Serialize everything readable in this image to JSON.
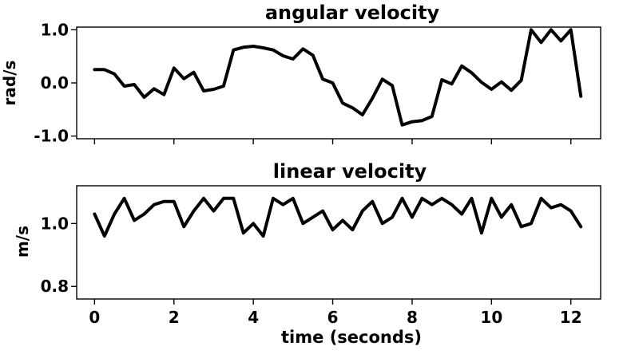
{
  "chart_data": [
    {
      "type": "line",
      "title": "angular velocity",
      "xlabel": "",
      "ylabel": "rad/s",
      "xlim": [
        -0.45,
        12.75
      ],
      "ylim": [
        -1.05,
        1.05
      ],
      "yticks": [
        -1.0,
        0.0,
        1.0
      ],
      "ytick_labels": [
        "-1.0",
        "0.0",
        "1.0"
      ],
      "xticks": [
        0,
        2,
        4,
        6,
        8,
        10,
        12
      ],
      "xtick_labels": [],
      "grid": false,
      "series": [
        {
          "x": [
            0.0,
            0.25,
            0.5,
            0.75,
            1.0,
            1.25,
            1.5,
            1.75,
            2.0,
            2.25,
            2.5,
            2.75,
            3.0,
            3.25,
            3.5,
            3.75,
            4.0,
            4.25,
            4.5,
            4.75,
            5.0,
            5.25,
            5.5,
            5.75,
            6.0,
            6.25,
            6.5,
            6.75,
            7.0,
            7.25,
            7.5,
            7.75,
            8.0,
            8.25,
            8.5,
            8.75,
            9.0,
            9.25,
            9.5,
            9.75,
            10.0,
            10.25,
            10.5,
            10.75,
            11.0,
            11.25,
            11.5,
            11.75,
            12.0,
            12.25
          ],
          "values": [
            0.25,
            0.25,
            0.17,
            -0.06,
            -0.03,
            -0.27,
            -0.11,
            -0.22,
            0.28,
            0.08,
            0.2,
            -0.15,
            -0.12,
            -0.06,
            0.62,
            0.67,
            0.69,
            0.66,
            0.62,
            0.51,
            0.45,
            0.64,
            0.52,
            0.07,
            0.0,
            -0.38,
            -0.47,
            -0.6,
            -0.29,
            0.07,
            -0.05,
            -0.79,
            -0.73,
            -0.71,
            -0.63,
            0.06,
            -0.02,
            0.32,
            0.19,
            0.01,
            -0.12,
            0.02,
            -0.14,
            0.05,
            1.0,
            0.76,
            1.0,
            0.79,
            1.0,
            -0.25
          ]
        }
      ]
    },
    {
      "type": "line",
      "title": "linear velocity",
      "xlabel": "time (seconds)",
      "ylabel": "m/s",
      "xlim": [
        -0.45,
        12.75
      ],
      "ylim": [
        0.76,
        1.12
      ],
      "yticks": [
        0.8,
        1.0
      ],
      "ytick_labels": [
        "0.8",
        "1.0"
      ],
      "xticks": [
        0,
        2,
        4,
        6,
        8,
        10,
        12
      ],
      "xtick_labels": [
        "0",
        "2",
        "4",
        "6",
        "8",
        "10",
        "12"
      ],
      "grid": false,
      "series": [
        {
          "x": [
            0.0,
            0.25,
            0.5,
            0.75,
            1.0,
            1.25,
            1.5,
            1.75,
            2.0,
            2.25,
            2.5,
            2.75,
            3.0,
            3.25,
            3.5,
            3.75,
            4.0,
            4.25,
            4.5,
            4.75,
            5.0,
            5.25,
            5.5,
            5.75,
            6.0,
            6.25,
            6.5,
            6.75,
            7.0,
            7.25,
            7.5,
            7.75,
            8.0,
            8.25,
            8.5,
            8.75,
            9.0,
            9.25,
            9.5,
            9.75,
            10.0,
            10.25,
            10.5,
            10.75,
            11.0,
            11.25,
            11.5,
            11.75,
            12.0,
            12.25
          ],
          "values": [
            1.03,
            0.96,
            1.03,
            1.08,
            1.01,
            1.03,
            1.06,
            1.07,
            1.07,
            0.99,
            1.04,
            1.08,
            1.04,
            1.08,
            1.08,
            0.97,
            1.0,
            0.96,
            1.08,
            1.06,
            1.08,
            1.0,
            1.02,
            1.04,
            0.98,
            1.01,
            0.98,
            1.04,
            1.07,
            1.0,
            1.02,
            1.08,
            1.02,
            1.08,
            1.06,
            1.08,
            1.06,
            1.03,
            1.08,
            0.97,
            1.08,
            1.02,
            1.06,
            0.99,
            1.0,
            1.08,
            1.05,
            1.06,
            1.04,
            0.99
          ]
        }
      ]
    }
  ]
}
